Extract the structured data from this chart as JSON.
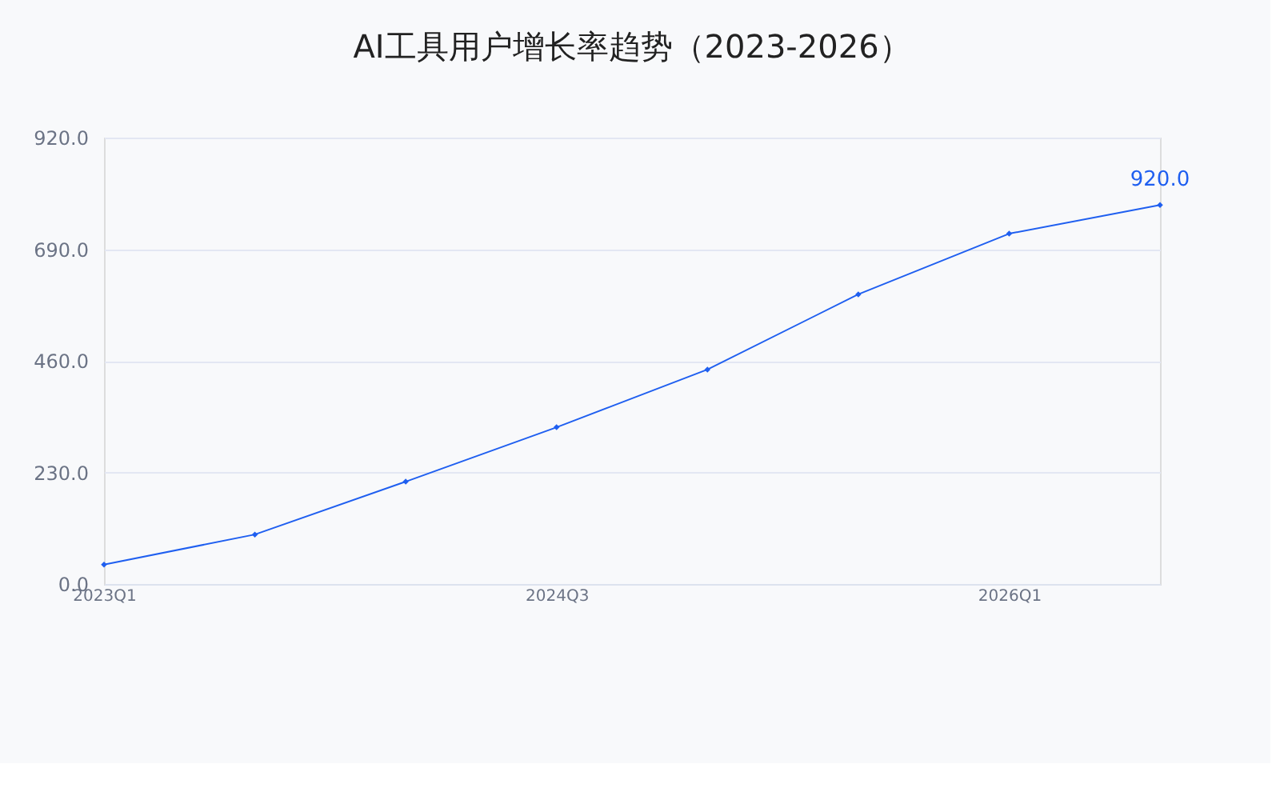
{
  "chart_data": {
    "type": "line",
    "title": "AI工具用户增长率趋势（2023-2026）",
    "categories": [
      "2023Q1",
      null,
      null,
      "2024Q3",
      null,
      null,
      "2026Q1",
      null
    ],
    "series": [
      {
        "color": "#1f5ff0",
        "values": [
          40,
          102,
          211,
          323,
          442,
          597,
          722,
          781
        ]
      }
    ],
    "annotations": [
      "920.0"
    ],
    "ylim": [
      0,
      920
    ],
    "yticks": [
      {
        "value": 0,
        "label": "0.0"
      },
      {
        "value": 230,
        "label": "230.0"
      },
      {
        "value": 460,
        "label": "460.0"
      },
      {
        "value": 690,
        "label": "690.0"
      },
      {
        "value": 920,
        "label": "920.0"
      }
    ],
    "grid": "y",
    "marker": "diamond",
    "line_style": "solid"
  }
}
